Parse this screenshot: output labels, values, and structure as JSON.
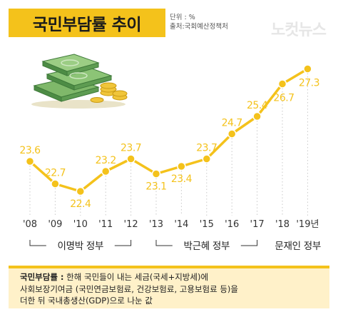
{
  "header": {
    "title": "국민부담률 추이",
    "unit": "단위 : %",
    "source": "출처:국회예산정책처",
    "watermark": "노컷뉴스"
  },
  "colors": {
    "accent": "#f4c21b",
    "line": "#f4c21b",
    "footer_bg": "#fff1c9"
  },
  "chart_data": {
    "type": "line",
    "title": "국민부담률 추이",
    "categories": [
      "'08",
      "'09",
      "'10",
      "'11",
      "'12",
      "'13",
      "'14",
      "'15",
      "'16",
      "'17",
      "'18",
      "'19년"
    ],
    "values": [
      23.6,
      22.7,
      22.4,
      23.2,
      23.7,
      23.1,
      23.4,
      23.7,
      24.7,
      25.4,
      26.7,
      27.3
    ],
    "ylim": [
      22,
      28
    ],
    "grid": "vertical dotted",
    "periods": [
      {
        "label": "이명박 정부",
        "from": 0,
        "to": 4
      },
      {
        "label": "박근혜 정부",
        "from": 5,
        "to": 9
      },
      {
        "label": "문재인 정부",
        "from": 10,
        "to": 11
      }
    ]
  },
  "footer": {
    "term": "국민부담률 :",
    "line1": "한해 국민들이 내는 세금(국세+지방세)에",
    "line2": "사회보장기여금 (국민연금보험료, 건강보험료, 고용보험료 등)을",
    "line3": "더한 뒤 국내총생산(GDP)으로 나눈 값"
  }
}
